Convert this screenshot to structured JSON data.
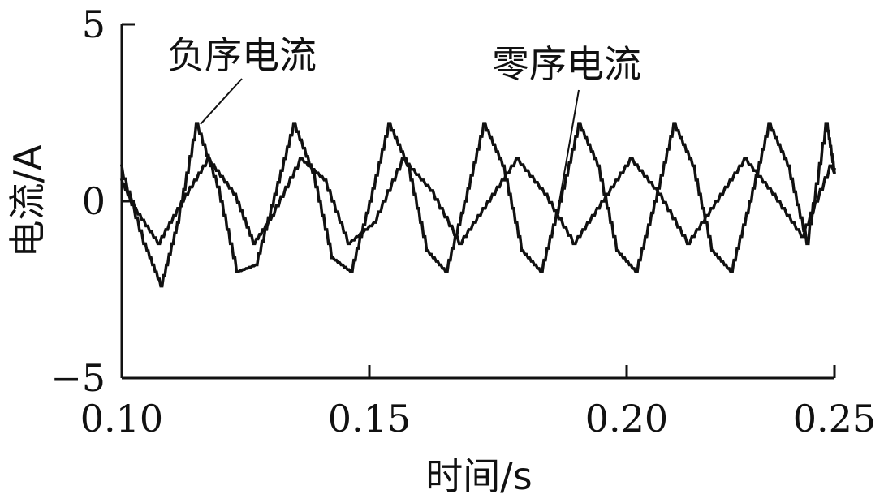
{
  "chart_data": {
    "type": "line",
    "xlabel": "时间/s",
    "ylabel": "电流/A",
    "xlim": [
      0.1,
      0.25
    ],
    "ylim": [
      -5,
      5
    ],
    "x_ticks": [
      "0.10",
      "0.15",
      "0.20",
      "0.25"
    ],
    "y_ticks": [
      "5",
      "0",
      "−5"
    ],
    "grid": false,
    "series": [
      {
        "name": "负序电流",
        "x": [
          0.1,
          0.105,
          0.1085,
          0.112,
          0.116,
          0.1205,
          0.1245,
          0.1285,
          0.1325,
          0.1365,
          0.1405,
          0.1445,
          0.1485,
          0.1525,
          0.1565,
          0.1605,
          0.1645,
          0.1685,
          0.1725,
          0.1765,
          0.1805,
          0.1845,
          0.1885,
          0.1925,
          0.1965,
          0.2005,
          0.2045,
          0.2085,
          0.2125,
          0.2165,
          0.2205,
          0.2245,
          0.2285,
          0.2325,
          0.2365,
          0.2405,
          0.2445,
          0.2485,
          0.25
        ],
        "y": [
          1.0,
          -1.2,
          -2.4,
          -0.6,
          2.2,
          0.4,
          -2.0,
          -1.8,
          0.2,
          2.2,
          0.8,
          -1.6,
          -2.0,
          0.0,
          2.2,
          1.0,
          -1.4,
          -2.0,
          0.0,
          2.2,
          1.0,
          -1.4,
          -2.0,
          0.0,
          2.2,
          1.0,
          -1.4,
          -2.0,
          0.0,
          2.2,
          1.0,
          -1.4,
          -2.0,
          0.0,
          2.2,
          1.0,
          -1.2,
          2.2,
          0.9
        ]
      },
      {
        "name": "零序电流",
        "x": [
          0.1,
          0.103,
          0.108,
          0.113,
          0.1185,
          0.124,
          0.128,
          0.132,
          0.138,
          0.143,
          0.148,
          0.1535,
          0.1595,
          0.1655,
          0.1715,
          0.1775,
          0.1835,
          0.1895,
          0.1955,
          0.2015,
          0.2075,
          0.2135,
          0.2195,
          0.2255,
          0.2315,
          0.2375,
          0.2435,
          0.2495,
          0.25
        ],
        "y": [
          0.6,
          -0.2,
          -1.2,
          0.0,
          1.2,
          0.2,
          -1.2,
          -0.4,
          1.2,
          0.6,
          -1.2,
          -0.6,
          1.2,
          0.3,
          -1.2,
          0.0,
          1.2,
          0.2,
          -1.2,
          0.0,
          1.2,
          0.2,
          -1.2,
          0.0,
          1.2,
          0.2,
          -1.0,
          1.0,
          0.8
        ]
      }
    ]
  }
}
